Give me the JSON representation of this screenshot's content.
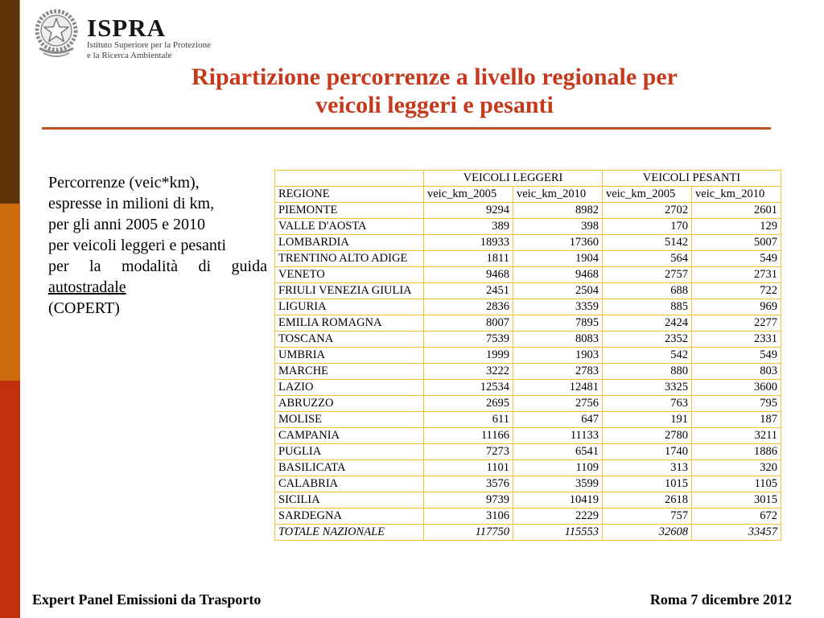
{
  "slide": {
    "logo": {
      "name": "ISPRA",
      "subtitle_line1": "Istituto Superiore per la Protezione",
      "subtitle_line2": "e la Ricerca Ambientale"
    },
    "title": {
      "line1": "Ripartizione percorrenze a livello regionale per",
      "line2": "veicoli leggeri e pesanti"
    },
    "intro": {
      "lines": [
        "Percorrenze (veic*km),",
        "espresse in milioni di km,",
        "per gli anni 2005 e 2010",
        "per veicoli leggeri e pesanti",
        "per la modalità di guida",
        "autostradale",
        "(COPERT)"
      ]
    },
    "footer": {
      "left": "Expert Panel Emissioni da Trasporto",
      "right": "Roma 7 dicembre 2012"
    },
    "colors": {
      "sidebar_top": "#5E3309",
      "sidebar_middle": "#CC6D0D",
      "sidebar_bottom": "#C2310B",
      "table_border": "#F5C332",
      "title_red": "#C5391C",
      "rule_red": "#C24E22"
    }
  },
  "table": {
    "group_headers": [
      "VEICOLI LEGGERI",
      "VEICOLI PESANTI"
    ],
    "col_headers": [
      "REGIONE",
      "veic_km_2005",
      "veic_km_2010",
      "veic_km_2005",
      "veic_km_2010"
    ],
    "rows": [
      [
        "PIEMONTE",
        "9294",
        "8982",
        "2702",
        "2601"
      ],
      [
        "VALLE D'AOSTA",
        "389",
        "398",
        "170",
        "129"
      ],
      [
        "LOMBARDIA",
        "18933",
        "17360",
        "5142",
        "5007"
      ],
      [
        "TRENTINO ALTO ADIGE",
        "1811",
        "1904",
        "564",
        "549"
      ],
      [
        "VENETO",
        "9468",
        "9468",
        "2757",
        "2731"
      ],
      [
        "FRIULI VENEZIA GIULIA",
        "2451",
        "2504",
        "688",
        "722"
      ],
      [
        "LIGURIA",
        "2836",
        "3359",
        "885",
        "969"
      ],
      [
        "EMILIA ROMAGNA",
        "8007",
        "7895",
        "2424",
        "2277"
      ],
      [
        "TOSCANA",
        "7539",
        "8083",
        "2352",
        "2331"
      ],
      [
        "UMBRIA",
        "1999",
        "1903",
        "542",
        "549"
      ],
      [
        "MARCHE",
        "3222",
        "2783",
        "880",
        "803"
      ],
      [
        "LAZIO",
        "12534",
        "12481",
        "3325",
        "3600"
      ],
      [
        "ABRUZZO",
        "2695",
        "2756",
        "763",
        "795"
      ],
      [
        "MOLISE",
        "611",
        "647",
        "191",
        "187"
      ],
      [
        "CAMPANIA",
        "11166",
        "11133",
        "2780",
        "3211"
      ],
      [
        "PUGLIA",
        "7273",
        "6541",
        "1740",
        "1886"
      ],
      [
        "BASILICATA",
        "1101",
        "1109",
        "313",
        "320"
      ],
      [
        "CALABRIA",
        "3576",
        "3599",
        "1015",
        "1105"
      ],
      [
        "SICILIA",
        "9739",
        "10419",
        "2618",
        "3015"
      ],
      [
        "SARDEGNA",
        "3106",
        "2229",
        "757",
        "672"
      ]
    ],
    "total": [
      "TOTALE NAZIONALE",
      "117750",
      "115553",
      "32608",
      "33457"
    ]
  },
  "chart_data": {
    "type": "table",
    "title": "Percorrenze autostradali (milioni di veic*km) per regione, veicoli leggeri e pesanti, anni 2005 e 2010 (COPERT)",
    "columns": [
      "REGIONE",
      "leggeri_veic_km_2005",
      "leggeri_veic_km_2010",
      "pesanti_veic_km_2005",
      "pesanti_veic_km_2010"
    ],
    "rows": [
      [
        "PIEMONTE",
        9294,
        8982,
        2702,
        2601
      ],
      [
        "VALLE D'AOSTA",
        389,
        398,
        170,
        129
      ],
      [
        "LOMBARDIA",
        18933,
        17360,
        5142,
        5007
      ],
      [
        "TRENTINO ALTO ADIGE",
        1811,
        1904,
        564,
        549
      ],
      [
        "VENETO",
        9468,
        9468,
        2757,
        2731
      ],
      [
        "FRIULI VENEZIA GIULIA",
        2451,
        2504,
        688,
        722
      ],
      [
        "LIGURIA",
        2836,
        3359,
        885,
        969
      ],
      [
        "EMILIA ROMAGNA",
        8007,
        7895,
        2424,
        2277
      ],
      [
        "TOSCANA",
        7539,
        8083,
        2352,
        2331
      ],
      [
        "UMBRIA",
        1999,
        1903,
        542,
        549
      ],
      [
        "MARCHE",
        3222,
        2783,
        880,
        803
      ],
      [
        "LAZIO",
        12534,
        12481,
        3325,
        3600
      ],
      [
        "ABRUZZO",
        2695,
        2756,
        763,
        795
      ],
      [
        "MOLISE",
        611,
        647,
        191,
        187
      ],
      [
        "CAMPANIA",
        11166,
        11133,
        2780,
        3211
      ],
      [
        "PUGLIA",
        7273,
        6541,
        1740,
        1886
      ],
      [
        "BASILICATA",
        1101,
        1109,
        313,
        320
      ],
      [
        "CALABRIA",
        3576,
        3599,
        1015,
        1105
      ],
      [
        "SICILIA",
        9739,
        10419,
        2618,
        3015
      ],
      [
        "SARDEGNA",
        3106,
        2229,
        757,
        672
      ],
      [
        "TOTALE NAZIONALE",
        117750,
        115553,
        32608,
        33457
      ]
    ]
  }
}
